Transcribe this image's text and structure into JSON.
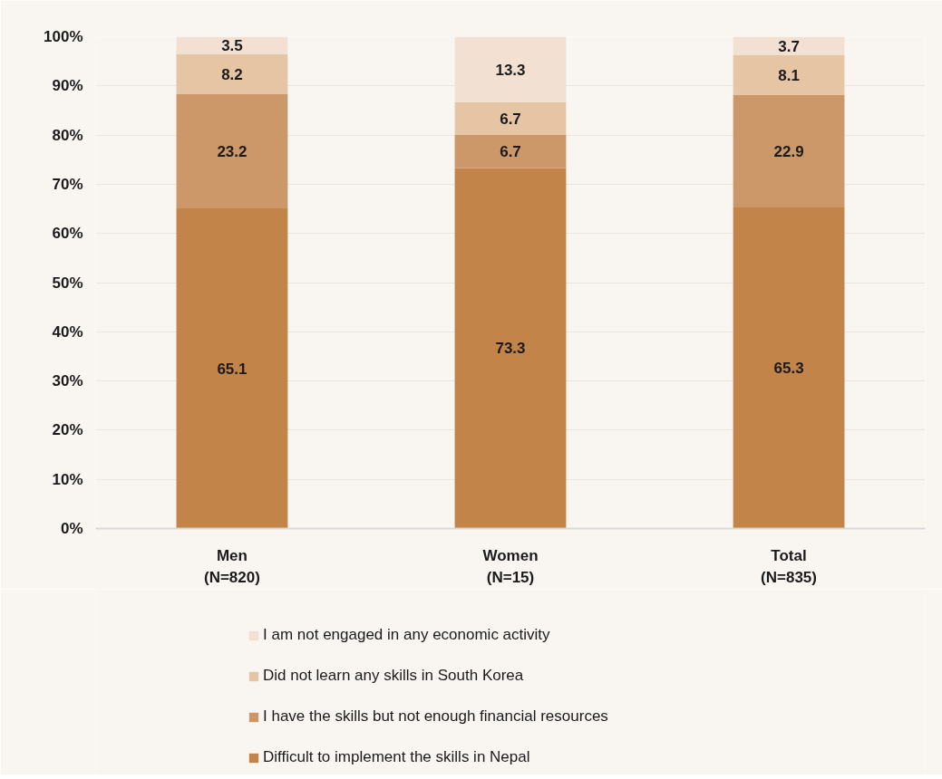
{
  "chart_data": {
    "type": "bar",
    "stacked": true,
    "categories": [
      "Men\n(N=820)",
      "Women\n(N=15)",
      "Total\n(N=835)"
    ],
    "series": [
      {
        "name": "Difficult to implement the skills in Nepal",
        "color": "#c38449",
        "values": [
          65.1,
          73.3,
          65.3
        ]
      },
      {
        "name": "I have the skills but not enough financial resources",
        "color": "#cc9869",
        "values": [
          23.2,
          6.7,
          22.9
        ]
      },
      {
        "name": "Did not learn any skills in South Korea",
        "color": "#e6c5a5",
        "values": [
          8.2,
          6.7,
          8.1
        ]
      },
      {
        "name": "I am not engaged in any economic activity",
        "color": "#f2e1d2",
        "values": [
          3.5,
          13.3,
          3.7
        ]
      }
    ],
    "ylim": [
      0,
      100
    ],
    "yticks": [
      {
        "value": 0,
        "label": "0%"
      },
      {
        "value": 10,
        "label": "10%"
      },
      {
        "value": 20,
        "label": "20%"
      },
      {
        "value": 30,
        "label": "30%"
      },
      {
        "value": 40,
        "label": "40%"
      },
      {
        "value": 50,
        "label": "50%"
      },
      {
        "value": 60,
        "label": "60%"
      },
      {
        "value": 70,
        "label": "70%"
      },
      {
        "value": 80,
        "label": "80%"
      },
      {
        "value": 90,
        "label": "90%"
      },
      {
        "value": 100,
        "label": "100%"
      }
    ],
    "grid": "y",
    "legend": "bottom",
    "data_labels": true
  }
}
